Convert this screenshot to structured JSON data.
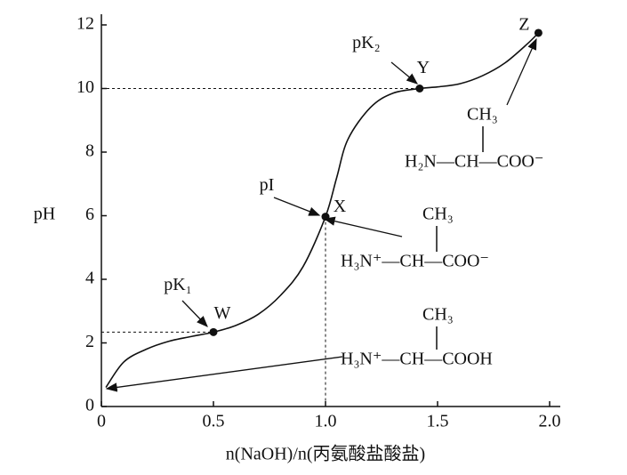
{
  "chart_data": {
    "type": "line",
    "x_label": "n(NaOH)/n(丙氨酸盐酸盐)",
    "y_label": "pH",
    "xlim": [
      0,
      2.0
    ],
    "ylim": [
      0,
      12
    ],
    "xticks": [
      0,
      0.5,
      {
        "value": 1,
        "label": "1.0"
      },
      1.5,
      {
        "value": 2,
        "label": "2.0"
      }
    ],
    "yticks": [
      0,
      2,
      4,
      6,
      8,
      10,
      12
    ],
    "x": [
      0.02,
      0.1,
      0.2,
      0.3,
      0.4,
      0.5,
      0.6,
      0.7,
      0.8,
      0.9,
      1.0,
      1.05,
      1.1,
      1.2,
      1.3,
      1.42,
      1.5,
      1.6,
      1.7,
      1.8,
      1.9,
      1.95
    ],
    "values": [
      0.6,
      1.4,
      1.8,
      2.05,
      2.2,
      2.34,
      2.55,
      2.9,
      3.5,
      4.4,
      5.97,
      7.2,
      8.4,
      9.4,
      9.85,
      10.0,
      10.05,
      10.15,
      10.4,
      10.8,
      11.4,
      11.75
    ],
    "color": "#111111",
    "points": [
      {
        "label": "W",
        "x": 0.5,
        "y": 2.34,
        "note": "pK₁"
      },
      {
        "label": "X",
        "x": 1.0,
        "y": 5.97,
        "note": "pI"
      },
      {
        "label": "Y",
        "x": 1.42,
        "y": 10.0,
        "note": "pK₂"
      },
      {
        "label": "Z",
        "x": 1.95,
        "y": 11.75
      }
    ],
    "structures": [
      {
        "top": "CH₃",
        "formula": "H₂N—CH—COO⁻"
      },
      {
        "top": "CH₃",
        "formula": "H₃N⁺—CH—COO⁻"
      },
      {
        "top": "CH₃",
        "formula": "H₃N⁺—CH—COOH"
      }
    ]
  }
}
